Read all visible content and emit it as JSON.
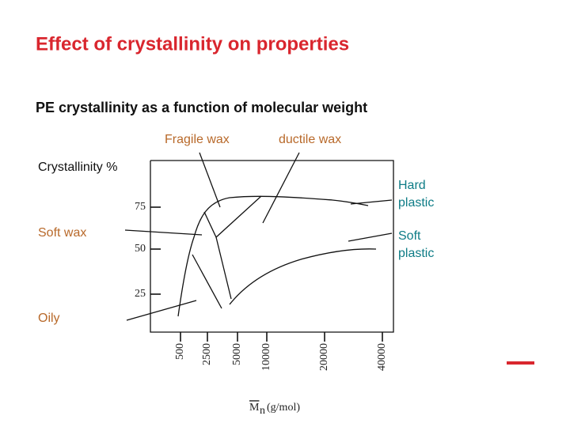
{
  "slide": {
    "title": "Effect of crystallinity on properties",
    "subtitle": "PE crystallinity as a function of molecular weight",
    "diagram": {
      "y_axis_label": "Crystallinity %",
      "y_ticks": [
        75,
        50,
        25
      ],
      "x_ticks": [
        500,
        2500,
        5000,
        10000,
        20000,
        40000
      ],
      "x_axis_symbol": "M",
      "x_axis_subscript": "n",
      "x_axis_unit": "(g/mol)",
      "regions": {
        "fragile_wax": "Fragile wax",
        "ductile_wax": "ductile wax",
        "hard_plastic": [
          "Hard",
          "plastic"
        ],
        "soft_plastic": [
          "Soft",
          "plastic"
        ],
        "soft_wax": "Soft wax",
        "oily": "Oily"
      }
    }
  }
}
